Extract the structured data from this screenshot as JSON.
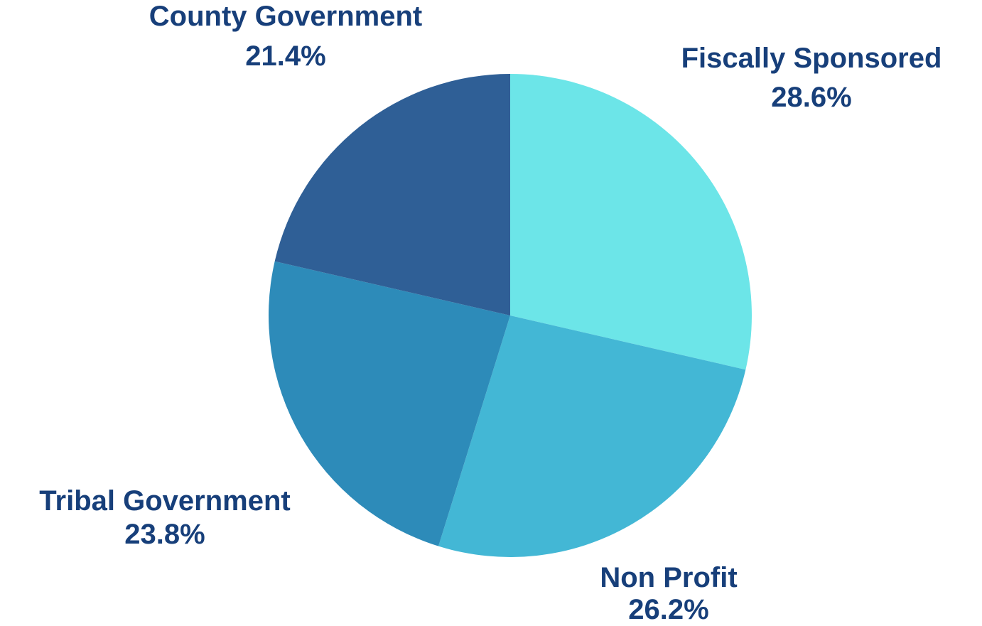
{
  "chart_data": {
    "type": "pie",
    "title": "",
    "start_angle_deg": 0,
    "direction": "clockwise",
    "slices": [
      {
        "name": "Fiscally Sponsored",
        "value": 28.6,
        "value_label": "28.6%",
        "color": "#6ce5e8"
      },
      {
        "name": "Non Profit",
        "value": 26.2,
        "value_label": "26.2%",
        "color": "#43b7d5"
      },
      {
        "name": "Tribal Government",
        "value": 23.8,
        "value_label": "23.8%",
        "color": "#2d8bb9"
      },
      {
        "name": "County Government",
        "value": 21.4,
        "value_label": "21.4%",
        "color": "#2f5f96"
      }
    ],
    "label_color": "#173f7a",
    "legend": false,
    "grid": false
  }
}
